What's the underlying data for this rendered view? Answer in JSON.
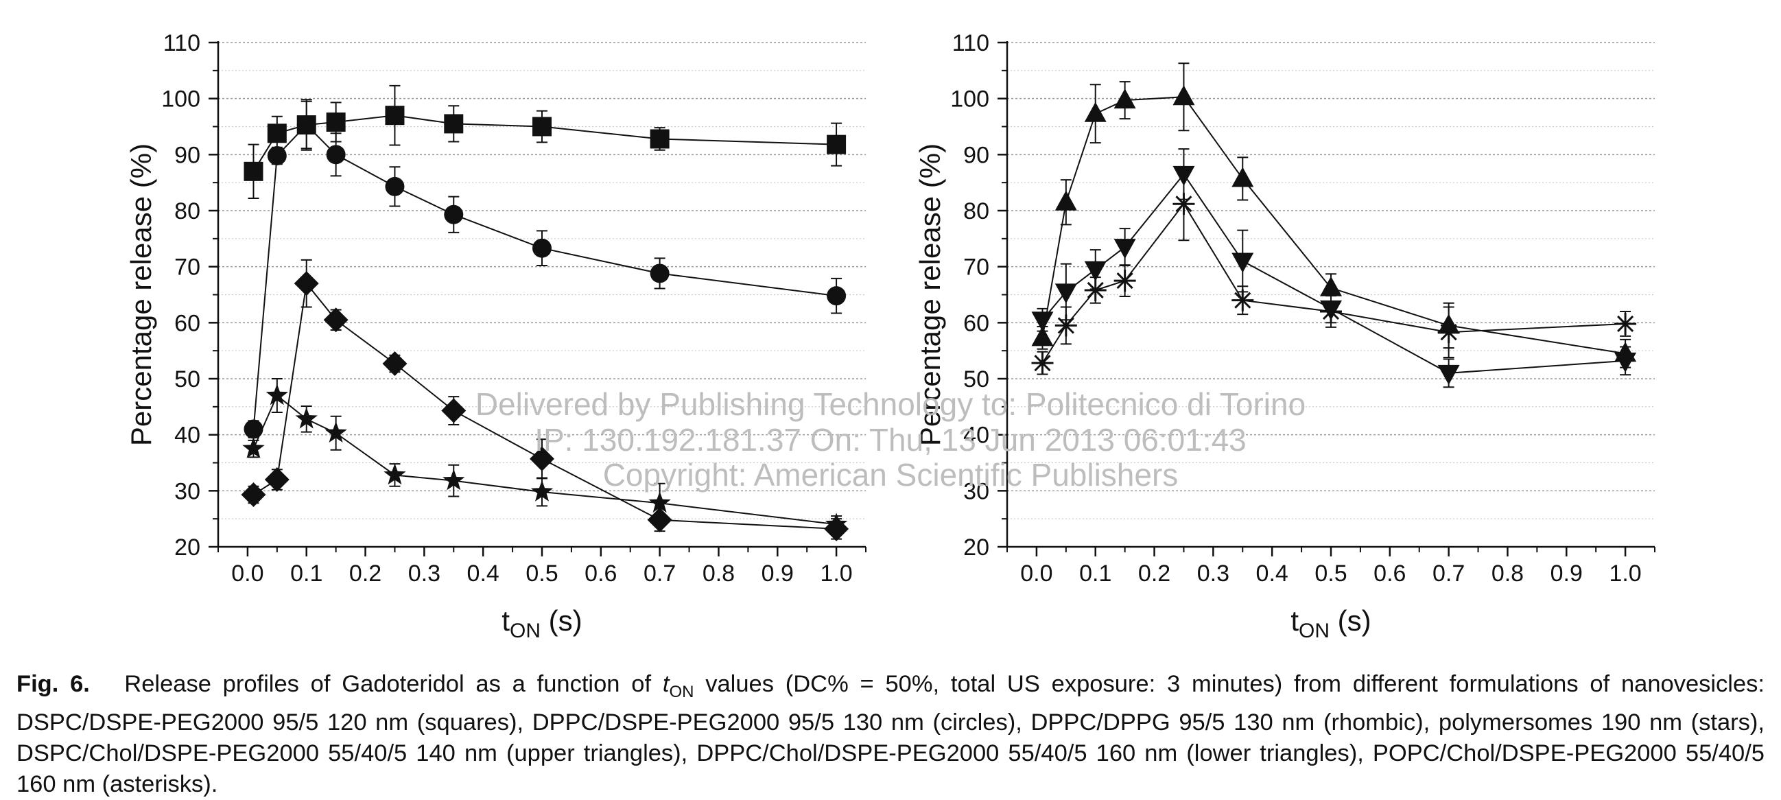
{
  "chart_data": [
    {
      "type": "line",
      "ylabel": "Percentage release (%)",
      "xlabel_main": "t",
      "xlabel_sub": "ON",
      "xlabel_unit": "(s)",
      "ylim": [
        20,
        110
      ],
      "xlim": [
        -0.05,
        1.05
      ],
      "yticks": [
        20,
        30,
        40,
        50,
        60,
        70,
        80,
        90,
        100,
        110
      ],
      "xticks": [
        0.0,
        0.1,
        0.2,
        0.3,
        0.4,
        0.5,
        0.6,
        0.7,
        0.8,
        0.9,
        1.0
      ],
      "xtick_labels": [
        "0.0",
        "0.1",
        "0.2",
        "0.3",
        "0.4",
        "0.5",
        "0.6",
        "0.7",
        "0.8",
        "0.9",
        "1.0"
      ],
      "grid": "horizontal-dotted",
      "series": [
        {
          "marker": "square",
          "x": [
            0.01,
            0.05,
            0.1,
            0.15,
            0.25,
            0.35,
            0.5,
            0.7,
            1.0
          ],
          "y": [
            87,
            93.8,
            95.3,
            95.8,
            97,
            95.5,
            95,
            92.8,
            91.8
          ],
          "err": [
            4.8,
            3,
            4.5,
            3.5,
            5.3,
            3.2,
            2.8,
            2,
            3.8
          ]
        },
        {
          "marker": "circle",
          "x": [
            0.01,
            0.05,
            0.1,
            0.15,
            0.25,
            0.35,
            0.5,
            0.7,
            1.0
          ],
          "y": [
            41,
            89.8,
            95.3,
            90,
            84.3,
            79.3,
            73.3,
            68.8,
            64.8
          ],
          "err": [
            1.5,
            1.5,
            4.2,
            3.8,
            3.5,
            3.2,
            3.1,
            2.7,
            3.1
          ]
        },
        {
          "marker": "diamond",
          "x": [
            0.01,
            0.05,
            0.1,
            0.15,
            0.25,
            0.35,
            0.5,
            0.7,
            1.0
          ],
          "y": [
            29.3,
            32,
            67,
            60.5,
            52.7,
            44.3,
            35.7,
            24.8,
            23.2
          ],
          "err": [
            1.5,
            1.8,
            4.2,
            1.8,
            1.5,
            2.5,
            3.5,
            2,
            1.8
          ]
        },
        {
          "marker": "star",
          "x": [
            0.01,
            0.05,
            0.1,
            0.15,
            0.25,
            0.35,
            0.5,
            0.7,
            1.0
          ],
          "y": [
            37.5,
            47,
            42.8,
            40.3,
            32.8,
            31.8,
            29.8,
            27.8,
            24
          ],
          "err": [
            1.5,
            3,
            2.3,
            3,
            2,
            2.8,
            2.5,
            3.5,
            1.5
          ]
        }
      ]
    },
    {
      "type": "line",
      "ylabel": "Percentage release (%)",
      "xlabel_main": "t",
      "xlabel_sub": "ON",
      "xlabel_unit": "(s)",
      "ylim": [
        20,
        110
      ],
      "xlim": [
        -0.05,
        1.05
      ],
      "yticks": [
        20,
        30,
        40,
        50,
        60,
        70,
        80,
        90,
        100,
        110
      ],
      "xticks": [
        0.0,
        0.1,
        0.2,
        0.3,
        0.4,
        0.5,
        0.6,
        0.7,
        0.8,
        0.9,
        1.0
      ],
      "xtick_labels": [
        "0.0",
        "0.1",
        "0.2",
        "0.3",
        "0.4",
        "0.5",
        "0.6",
        "0.7",
        "0.8",
        "0.9",
        "1.0"
      ],
      "grid": "horizontal-dotted",
      "series": [
        {
          "marker": "triangle-up",
          "x": [
            0.01,
            0.05,
            0.1,
            0.15,
            0.25,
            0.35,
            0.5,
            0.7,
            1.0
          ],
          "y": [
            57.3,
            81.5,
            97.3,
            99.7,
            100.3,
            85.7,
            66.2,
            59.5,
            54.5
          ],
          "err": [
            2,
            4,
            5.2,
            3.3,
            6,
            3.8,
            2.5,
            4,
            2.5
          ]
        },
        {
          "marker": "triangle-down",
          "x": [
            0.01,
            0.05,
            0.1,
            0.15,
            0.25,
            0.35,
            0.5,
            0.7,
            1.0
          ],
          "y": [
            60.5,
            65.5,
            69.5,
            73.5,
            86.5,
            71,
            62.5,
            51,
            53.2
          ],
          "err": [
            2,
            5,
            3.5,
            3.3,
            4.5,
            5.5,
            2.5,
            2.5,
            2.5
          ]
        },
        {
          "marker": "asterisk",
          "x": [
            0.01,
            0.05,
            0.1,
            0.15,
            0.25,
            0.35,
            0.5,
            0.7,
            1.0
          ],
          "y": [
            52.8,
            59.5,
            65.8,
            67.5,
            81.2,
            64,
            62,
            58.3,
            59.8
          ],
          "err": [
            2,
            3.3,
            2.3,
            2.8,
            6.5,
            2.5,
            2.8,
            4.5,
            2.2
          ]
        }
      ]
    }
  ],
  "watermark": {
    "line1": "Delivered by Publishing Technology to: Politecnico di Torino",
    "line2": "IP: 130.192.181.37 On: Thu, 13 Jun 2013 06:01:43",
    "line3": "Copyright: American Scientific Publishers"
  },
  "caption": {
    "label": "Fig. 6.",
    "t1": "Release profiles of Gadoteridol as a function of ",
    "t_var": "t",
    "t_sub": "ON",
    "t2": " values (DC% = 50%, total US exposure: 3 minutes) from different formulations of nanovesicles: DSPC/DSPE-PEG2000 95/5 120 nm (squares), DPPC/DSPE-PEG2000 95/5 130 nm (circles), DPPC/DPPG 95/5 130 nm (rhombic), polymersomes 190 nm (stars), DSPC/Chol/DSPE-PEG2000 55/40/5 140 nm (upper triangles), DPPC/Chol/DSPE-PEG2000 55/40/5 160 nm (lower triangles), POPC/Chol/DSPE-PEG2000 55/40/5 160 nm (asterisks)."
  },
  "colors": {
    "ink": "#111111",
    "grid": "#999999",
    "watermark": "#bdbdbd"
  }
}
